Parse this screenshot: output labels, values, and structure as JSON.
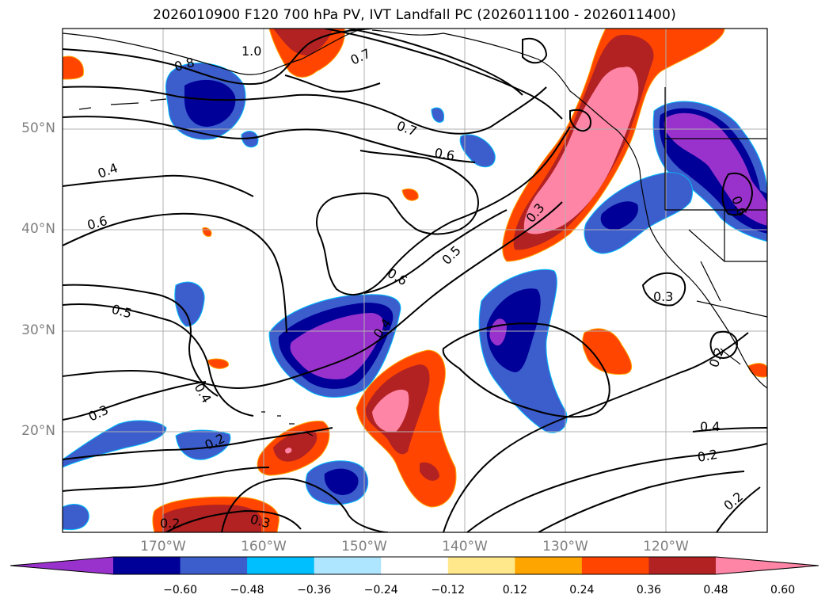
{
  "title": "2026010900 F120 700 hPa PV, IVT Landfall PC (2026011100 - 2026011400)",
  "lat_labels": [
    "50°N",
    "40°N",
    "30°N",
    "20°N"
  ],
  "lon_labels": [
    "170°W",
    "160°W",
    "150°W",
    "140°W",
    "130°W",
    "120°W"
  ],
  "contour_labels": [
    "1.0",
    "0.8",
    "0.7",
    "0.7",
    "0.6",
    "0.4",
    "0.6",
    "0.5",
    "0.5",
    "0.6",
    "0.4",
    "0.3",
    "0.4",
    "0.3",
    "0.2",
    "0.2",
    "0.3",
    "0.4",
    "0.2",
    "0.2",
    "0.3",
    "0.6",
    "0.2"
  ],
  "colorbar": {
    "ticks": [
      "−0.60",
      "−0.48",
      "−0.36",
      "−0.24",
      "−0.12",
      "0.12",
      "0.24",
      "0.36",
      "0.48",
      "0.60"
    ],
    "colors": [
      "#9932cc",
      "#000099",
      "#3c5dcc",
      "#00bfff",
      "#aee5ff",
      "#ffffff",
      "#ffe88c",
      "#ffa500",
      "#ff4500",
      "#b22222",
      "#ff85a6"
    ]
  }
}
